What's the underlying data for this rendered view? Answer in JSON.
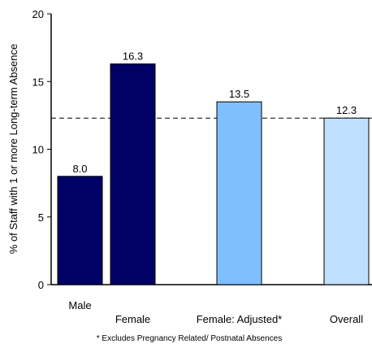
{
  "chart_data": {
    "type": "bar",
    "categories": [
      "Male",
      "Female",
      "Female: Adjusted*",
      "Overall"
    ],
    "values": [
      8.0,
      16.3,
      13.5,
      12.3
    ],
    "value_labels": [
      "8.0",
      "16.3",
      "13.5",
      "12.3"
    ],
    "bar_colors": [
      "#000066",
      "#000066",
      "#80bfff",
      "#c0e0ff"
    ],
    "ylabel": "% of Staff with 1 or more Long-term Absence",
    "ylim": [
      0,
      20
    ],
    "yticks": [
      0,
      5,
      10,
      15,
      20
    ],
    "ytick_labels": [
      "0",
      "5",
      "10",
      "15",
      "20"
    ],
    "reference_line": 12.3,
    "grid": false,
    "footnote": "* Excludes Pregnancy Related/ Postnatal Absences"
  }
}
